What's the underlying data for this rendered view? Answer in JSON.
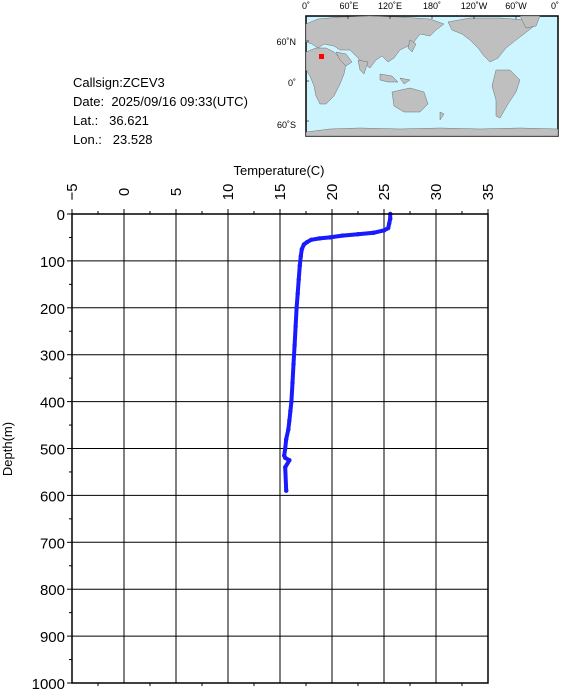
{
  "info": {
    "callsign": "Callsign:ZCEV3",
    "date_label": "Date:",
    "date_value": "2025/09/16 09:33(UTC)",
    "lat_label": "Lat.:",
    "lat_value": "36.621",
    "lon_label": "Lon.:",
    "lon_value": "23.528"
  },
  "map": {
    "top_labels": [
      "0˚",
      "60˚E",
      "120˚E",
      "180˚",
      "120˚W",
      "60˚W",
      "0˚"
    ],
    "side_labels": [
      "60˚N",
      "0˚",
      "60˚S"
    ],
    "marker_color": "#ff0000",
    "ocean_color": "#ccf5ff",
    "land_color": "#bfbfbf"
  },
  "chart_data": {
    "type": "line",
    "xlabel": "Temperature(C)",
    "ylabel": "Depth(m)",
    "xlim": [
      -5,
      35
    ],
    "ylim": [
      0,
      1000
    ],
    "y_inverted": true,
    "x_ticks": [
      "−5",
      "0",
      "5",
      "10",
      "15",
      "20",
      "25",
      "30",
      "35"
    ],
    "y_ticks": [
      "0",
      "100",
      "200",
      "300",
      "400",
      "500",
      "600",
      "700",
      "800",
      "900",
      "1000"
    ],
    "grid": true,
    "series": [
      {
        "color": "#1a1aff",
        "x": [
          25.6,
          25.6,
          25.5,
          25.4,
          25.0,
          24.0,
          22.5,
          21.0,
          19.8,
          18.8,
          18.0,
          17.6,
          17.3,
          17.1,
          17.0,
          16.9,
          16.8,
          16.7,
          16.6,
          16.5,
          16.4,
          16.3,
          16.2,
          16.1,
          16.0,
          15.9,
          15.8,
          15.6,
          15.5,
          15.4,
          15.5,
          15.9,
          15.5,
          15.6
        ],
        "y": [
          0,
          10,
          20,
          30,
          35,
          40,
          43,
          46,
          50,
          52,
          55,
          60,
          65,
          75,
          90,
          110,
          140,
          170,
          200,
          240,
          280,
          320,
          360,
          400,
          420,
          440,
          460,
          480,
          500,
          515,
          520,
          525,
          540,
          590
        ]
      }
    ]
  }
}
